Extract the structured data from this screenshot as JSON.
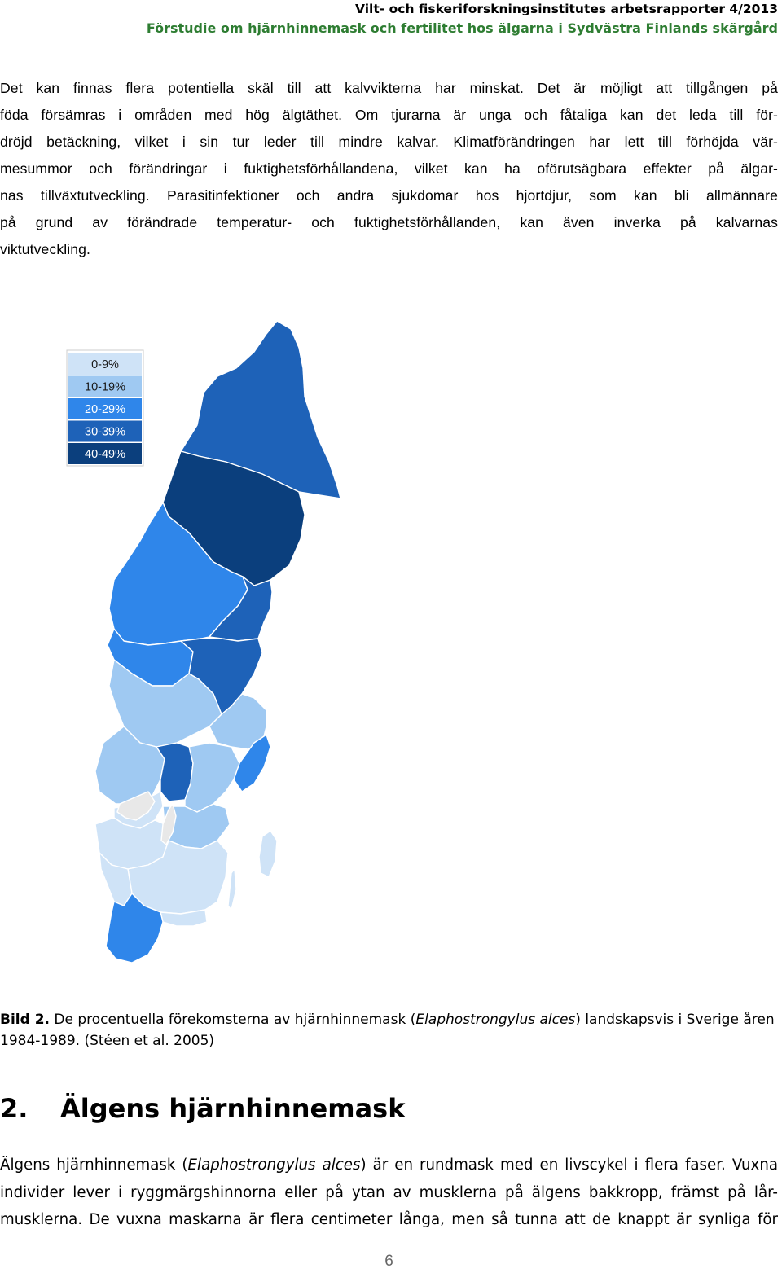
{
  "header": {
    "line1": "Vilt- och fiskeriforskningsinstitutes arbetsrapporter 4/2013",
    "line2": "Förstudie om hjärnhinnemask och fertilitet hos älgarna i Sydvästra Finlands skärgård"
  },
  "paragraph1": [
    "Det kan finnas flera potentiella skäl till att kalvvikterna har minskat. Det är möjligt att tillgången på",
    "föda försämras i områden med hög älgtäthet. Om tjurarna är unga och fåtaliga kan det leda till för-",
    "dröjd betäckning, vilket i sin tur leder till mindre kalvar. Klimatförändringen har lett till förhöjda vär-",
    "mesummor och förändringar i fuktighetsförhållandena, vilket kan ha oförutsägbara effekter på älgar-",
    "nas tillväxtutveckling. Parasitinfektioner och andra sjukdomar hos hjortdjur, som kan bli allmännare",
    "på grund av förändrade temperatur- och fuktighetsförhållanden, kan även inverka på kalvarnas",
    "viktutveckling."
  ],
  "map": {
    "legend": [
      {
        "label": "0-9%",
        "color": "#cfe3f7"
      },
      {
        "label": "10-19%",
        "color": "#9fc9f2"
      },
      {
        "label": "20-29%",
        "color": "#2f86ea"
      },
      {
        "label": "30-39%",
        "color": "#1e62b8"
      },
      {
        "label": "40-49%",
        "color": "#0b3f7d"
      }
    ],
    "colors": {
      "outside": "#e8e8e8",
      "border": "#ffffff"
    }
  },
  "caption": {
    "bold": "Bild 2.",
    "before_italic": " De procentuella förekomsterna av hjärnhinnemask (",
    "italic": "Elaphostrongylus alces",
    "after_italic_line1": ") landskapsvis i Sverige åren",
    "line2": "1984-1989. (Stéen et al. 2005)"
  },
  "section": {
    "number": "2.",
    "title": "Älgens hjärnhinnemask"
  },
  "paragraph2": {
    "line1_a": "Älgens hjärnhinnemask (",
    "line1_italic": "Elaphostrongylus alces",
    "line1_b": ") är en rundmask med en livscykel i flera faser. Vuxna",
    "line2": "individer lever i ryggmärgshinnorna eller på ytan av musklerna på älgens bakkropp, främst på lår-",
    "line3": "musklerna. De vuxna maskarna är flera centimeter långa, men så tunna att de knappt är synliga för"
  },
  "page_number": "6"
}
